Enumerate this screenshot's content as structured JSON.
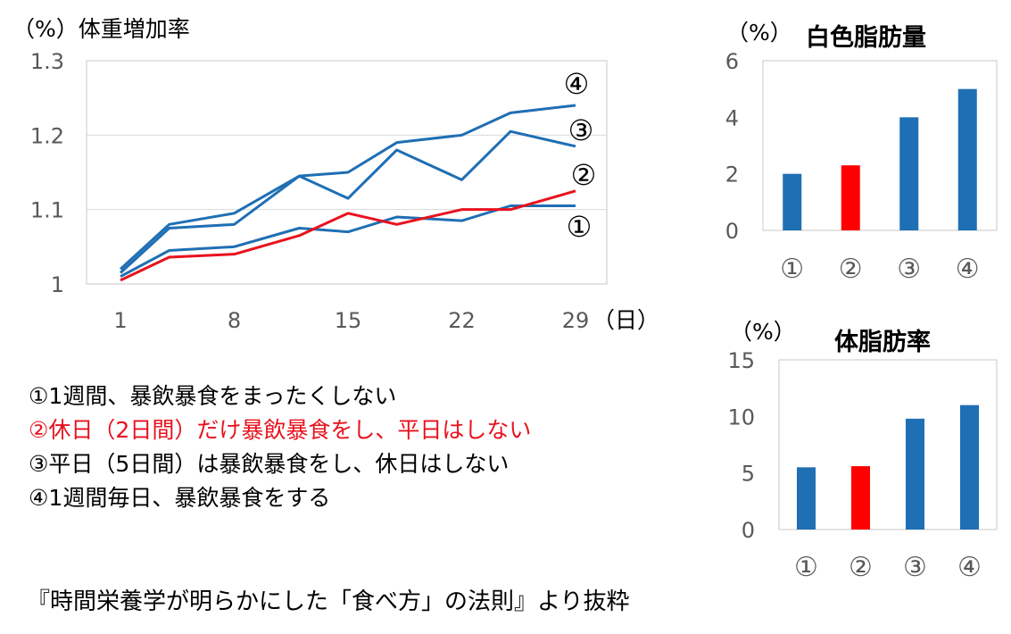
{
  "chart_data": [
    {
      "type": "line",
      "ylabel": "（%）体重増加率",
      "xlabel": "（日）",
      "x": [
        1,
        4,
        8,
        12,
        15,
        18,
        22,
        25,
        29
      ],
      "xticks": [
        "1",
        "8",
        "15",
        "22",
        "29"
      ],
      "yticks": [
        "1",
        "1.1",
        "1.2",
        "1.3"
      ],
      "ylim": [
        1,
        1.3
      ],
      "grid": true,
      "series": [
        {
          "name": "①",
          "color": "#1f6fb4",
          "values": [
            1.01,
            1.045,
            1.05,
            1.075,
            1.07,
            1.09,
            1.085,
            1.105,
            1.105
          ]
        },
        {
          "name": "②",
          "color": "#e8121e",
          "values": [
            1.005,
            1.036,
            1.04,
            1.065,
            1.095,
            1.08,
            1.1,
            1.1,
            1.125
          ]
        },
        {
          "name": "③",
          "color": "#1f6fb4",
          "values": [
            1.015,
            1.075,
            1.08,
            1.145,
            1.115,
            1.18,
            1.14,
            1.205,
            1.185
          ]
        },
        {
          "name": "④",
          "color": "#1f6fb4",
          "values": [
            1.02,
            1.08,
            1.095,
            1.145,
            1.15,
            1.19,
            1.2,
            1.23,
            1.24
          ]
        }
      ]
    },
    {
      "type": "bar",
      "title": "白色脂肪量",
      "unit": "（%）",
      "categories": [
        "①",
        "②",
        "③",
        "④"
      ],
      "values": [
        2.0,
        2.3,
        4.0,
        5.0
      ],
      "colors": [
        "#1f6fb4",
        "#ff0000",
        "#1f6fb4",
        "#1f6fb4"
      ],
      "yticks": [
        "0",
        "2",
        "4",
        "6"
      ],
      "ylim": [
        0,
        6
      ]
    },
    {
      "type": "bar",
      "title": "体脂肪率",
      "unit": "（%）",
      "categories": [
        "①",
        "②",
        "③",
        "④"
      ],
      "values": [
        5.5,
        5.6,
        9.8,
        11.0
      ],
      "colors": [
        "#1f6fb4",
        "#ff0000",
        "#1f6fb4",
        "#1f6fb4"
      ],
      "yticks": [
        "0",
        "5",
        "10",
        "15"
      ],
      "ylim": [
        0,
        15
      ]
    }
  ],
  "legend": [
    {
      "text": "①1週間、暴飲暴食をまったくしない",
      "color": "#000000"
    },
    {
      "text": "②休日（2日間）だけ暴飲暴食をし、平日はしない",
      "color": "#e8121e"
    },
    {
      "text": "③平日（5日間）は暴飲暴食をし、休日はしない",
      "color": "#000000"
    },
    {
      "text": "④1週間毎日、暴飲暴食をする",
      "color": "#000000"
    }
  ],
  "source": "『時間栄養学が明らかにした「食べ方」の法則』より抜粋"
}
